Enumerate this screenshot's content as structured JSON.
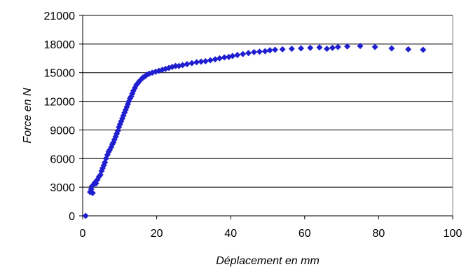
{
  "chart_data": {
    "type": "scatter",
    "title": "",
    "xlabel": "Déplacement en mm",
    "ylabel": "Force en N",
    "xlim": [
      0,
      100
    ],
    "ylim": [
      0,
      21000
    ],
    "xticks": [
      0,
      20,
      40,
      60,
      80,
      100
    ],
    "yticks": [
      0,
      3000,
      6000,
      9000,
      12000,
      15000,
      18000,
      21000
    ],
    "xtick_labels": [
      "0",
      "20",
      "40",
      "60",
      "80",
      "100"
    ],
    "ytick_labels": [
      "0",
      "3000",
      "6000",
      "9000",
      "12000",
      "15000",
      "18000",
      "21000"
    ],
    "grid": "horizontal",
    "legend": "none",
    "marker_color": "#1f1fd0",
    "marker": "diamond",
    "points": [
      [
        0.8,
        0
      ],
      [
        2.0,
        2500
      ],
      [
        2.3,
        2800
      ],
      [
        2.5,
        3100
      ],
      [
        2.7,
        2400
      ],
      [
        3.0,
        3300
      ],
      [
        3.3,
        3500
      ],
      [
        3.6,
        3400
      ],
      [
        4.0,
        3800
      ],
      [
        4.4,
        4100
      ],
      [
        4.8,
        4300
      ],
      [
        5.1,
        4700
      ],
      [
        5.4,
        5000
      ],
      [
        5.7,
        5300
      ],
      [
        6.0,
        5600
      ],
      [
        6.3,
        6000
      ],
      [
        6.7,
        6400
      ],
      [
        7.0,
        6700
      ],
      [
        7.3,
        6900
      ],
      [
        7.7,
        7200
      ],
      [
        8.0,
        7500
      ],
      [
        8.3,
        7700
      ],
      [
        8.6,
        8000
      ],
      [
        8.9,
        8300
      ],
      [
        9.2,
        8600
      ],
      [
        9.5,
        8900
      ],
      [
        9.8,
        9300
      ],
      [
        10.1,
        9600
      ],
      [
        10.4,
        9900
      ],
      [
        10.7,
        10200
      ],
      [
        11.0,
        10500
      ],
      [
        11.3,
        10800
      ],
      [
        11.6,
        11100
      ],
      [
        11.9,
        11400
      ],
      [
        12.2,
        11700
      ],
      [
        12.5,
        12000
      ],
      [
        12.8,
        12300
      ],
      [
        13.1,
        12500
      ],
      [
        13.4,
        12800
      ],
      [
        13.7,
        13100
      ],
      [
        14.1,
        13400
      ],
      [
        14.5,
        13700
      ],
      [
        14.9,
        13900
      ],
      [
        15.3,
        14100
      ],
      [
        15.8,
        14300
      ],
      [
        16.3,
        14500
      ],
      [
        16.8,
        14600
      ],
      [
        17.4,
        14800
      ],
      [
        18.0,
        14900
      ],
      [
        18.8,
        15000
      ],
      [
        19.7,
        15100
      ],
      [
        20.6,
        15200
      ],
      [
        21.5,
        15300
      ],
      [
        22.4,
        15400
      ],
      [
        23.3,
        15500
      ],
      [
        24.2,
        15600
      ],
      [
        25.1,
        15700
      ],
      [
        26.0,
        15700
      ],
      [
        27.0,
        15800
      ],
      [
        28.2,
        15900
      ],
      [
        29.5,
        16000
      ],
      [
        30.8,
        16100
      ],
      [
        32.0,
        16150
      ],
      [
        33.2,
        16200
      ],
      [
        34.5,
        16300
      ],
      [
        35.8,
        16400
      ],
      [
        37.0,
        16500
      ],
      [
        38.3,
        16600
      ],
      [
        39.5,
        16650
      ],
      [
        40.5,
        16750
      ],
      [
        41.8,
        16850
      ],
      [
        43.3,
        16950
      ],
      [
        44.8,
        17050
      ],
      [
        46.3,
        17150
      ],
      [
        47.8,
        17200
      ],
      [
        49.3,
        17250
      ],
      [
        50.6,
        17350
      ],
      [
        52.0,
        17400
      ],
      [
        54.0,
        17450
      ],
      [
        56.5,
        17500
      ],
      [
        59.0,
        17550
      ],
      [
        61.5,
        17600
      ],
      [
        64.0,
        17650
      ],
      [
        66.0,
        17500
      ],
      [
        67.5,
        17600
      ],
      [
        69.0,
        17700
      ],
      [
        71.5,
        17750
      ],
      [
        75.0,
        17800
      ],
      [
        79.0,
        17700
      ],
      [
        83.5,
        17550
      ],
      [
        88.0,
        17450
      ],
      [
        92.0,
        17400
      ]
    ]
  }
}
